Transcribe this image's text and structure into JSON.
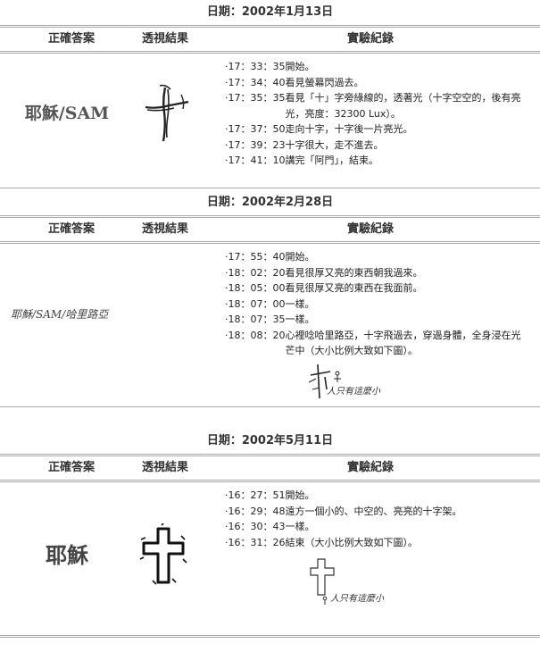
{
  "headers": {
    "answer": "正確答案",
    "result": "透視結果",
    "record": "實驗紀錄"
  },
  "sections": [
    {
      "date": "日期：2002年1月13日",
      "answer": "耶穌/SAM",
      "records": [
        {
          "time": "‧17：33：35",
          "text": "開始。"
        },
        {
          "time": "‧17：34：40",
          "text": "看見螢幕閃過去。"
        },
        {
          "time": "‧17：35：35",
          "text": "看見「十」字旁綠線的，透著光（十字空空的，後有亮光，亮度：32300 Lux）。"
        },
        {
          "time": "‧17：37：50",
          "text": "走向十字，十字後一片亮光。"
        },
        {
          "time": "‧17：39：23",
          "text": "十字很大，走不進去。"
        },
        {
          "time": "‧17：41：10",
          "text": "講完「阿門」，結束。"
        }
      ]
    },
    {
      "date": "日期：2002年2月28日",
      "answer": "耶穌/SAM/哈里路亞",
      "records": [
        {
          "time": "‧17：55：40",
          "text": "開始。"
        },
        {
          "time": "‧18：02：20",
          "text": "看見很厚又亮的東西朝我過來。"
        },
        {
          "time": "‧18：05：00",
          "text": "看見很厚又亮的東西在我面前。"
        },
        {
          "time": "‧18：07：00",
          "text": "一樣。"
        },
        {
          "time": "‧18：07：35",
          "text": "一樣。"
        },
        {
          "time": "‧18：08：20",
          "text": "心裡唸哈里路亞，十字飛過去，穿過身體，全身浸在光芒中（大小比例大致如下圖）。"
        }
      ],
      "sketch_note": "人只有這麼小"
    },
    {
      "date": "日期：2002年5月11日",
      "answer": "耶穌",
      "records": [
        {
          "time": "‧16：27：51",
          "text": "開始。"
        },
        {
          "time": "‧16：29：48",
          "text": "遠方一個小的、中空的、亮亮的十字架。"
        },
        {
          "time": "‧16：30：43",
          "text": "一樣。"
        },
        {
          "time": "‧16：31：26",
          "text": "結束（大小比例大致如下圖）。"
        }
      ],
      "sketch_note": "人只有這麼小"
    }
  ]
}
